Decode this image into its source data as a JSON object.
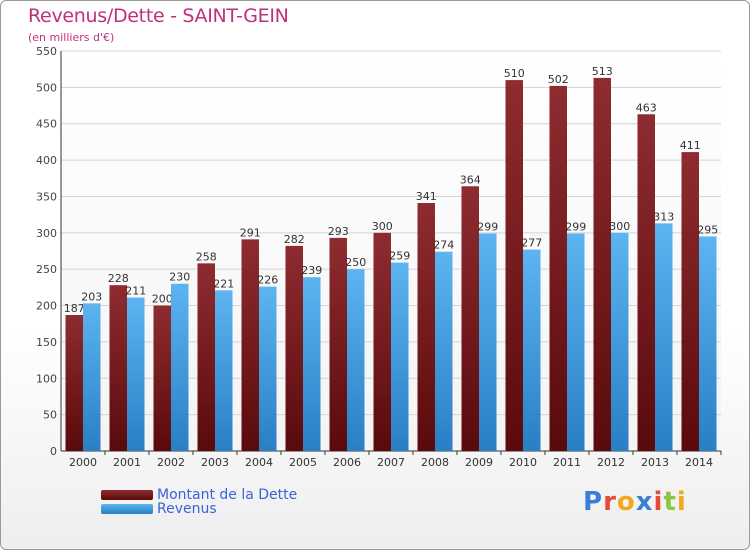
{
  "header": {
    "title": "Revenus/Dette - SAINT-GEIN",
    "subtitle": "(en milliers d'€)"
  },
  "chart_data": {
    "type": "bar",
    "categories": [
      "2000",
      "2001",
      "2002",
      "2003",
      "2004",
      "2005",
      "2006",
      "2007",
      "2008",
      "2009",
      "2010",
      "2011",
      "2012",
      "2013",
      "2014"
    ],
    "series": [
      {
        "name": "Montant de la Dette",
        "color": "#7a1f22",
        "values": [
          187,
          228,
          200,
          258,
          291,
          282,
          293,
          300,
          341,
          364,
          510,
          502,
          513,
          463,
          411
        ]
      },
      {
        "name": "Revenus",
        "color": "#4aa3e6",
        "values": [
          203,
          211,
          230,
          221,
          226,
          239,
          250,
          259,
          274,
          299,
          277,
          299,
          300,
          313,
          295
        ]
      }
    ],
    "ylim": [
      0,
      550
    ],
    "yticks": [
      0,
      50,
      100,
      150,
      200,
      250,
      300,
      350,
      400,
      450,
      500,
      550
    ],
    "grid": true,
    "legend_position": "bottom-left"
  },
  "logo": {
    "letters": [
      "P",
      "r",
      "o",
      "x",
      "i",
      "t",
      "i"
    ],
    "colors": [
      "#3a7fd6",
      "#e84a3a",
      "#f2a81d",
      "#3a7fd6",
      "#e84a3a",
      "#8cc63f",
      "#f2a81d"
    ]
  }
}
